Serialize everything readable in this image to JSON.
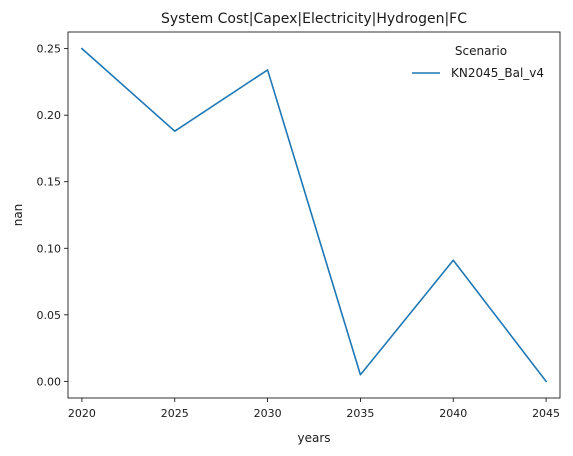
{
  "chart_data": {
    "type": "line",
    "title": "System Cost|Capex|Electricity|Hydrogen|FC",
    "xlabel": "years",
    "ylabel": "nan",
    "x": [
      2020,
      2025,
      2030,
      2035,
      2040,
      2045
    ],
    "xticks": [
      "2020",
      "2025",
      "2030",
      "2035",
      "2040",
      "2045"
    ],
    "yticks": [
      "0.00",
      "0.05",
      "0.10",
      "0.15",
      "0.20",
      "0.25"
    ],
    "ytick_values": [
      0.0,
      0.05,
      0.1,
      0.15,
      0.2,
      0.25
    ],
    "xlim": [
      2019.25,
      2045.75
    ],
    "ylim": [
      -0.0125,
      0.2625
    ],
    "grid": false,
    "legend": {
      "title": "Scenario",
      "placement": "upper right"
    },
    "series": [
      {
        "name": "KN2045_Bal_v4",
        "color": "#1f77b4",
        "values": [
          0.25,
          0.188,
          0.234,
          0.005,
          0.091,
          0.0
        ]
      }
    ]
  }
}
